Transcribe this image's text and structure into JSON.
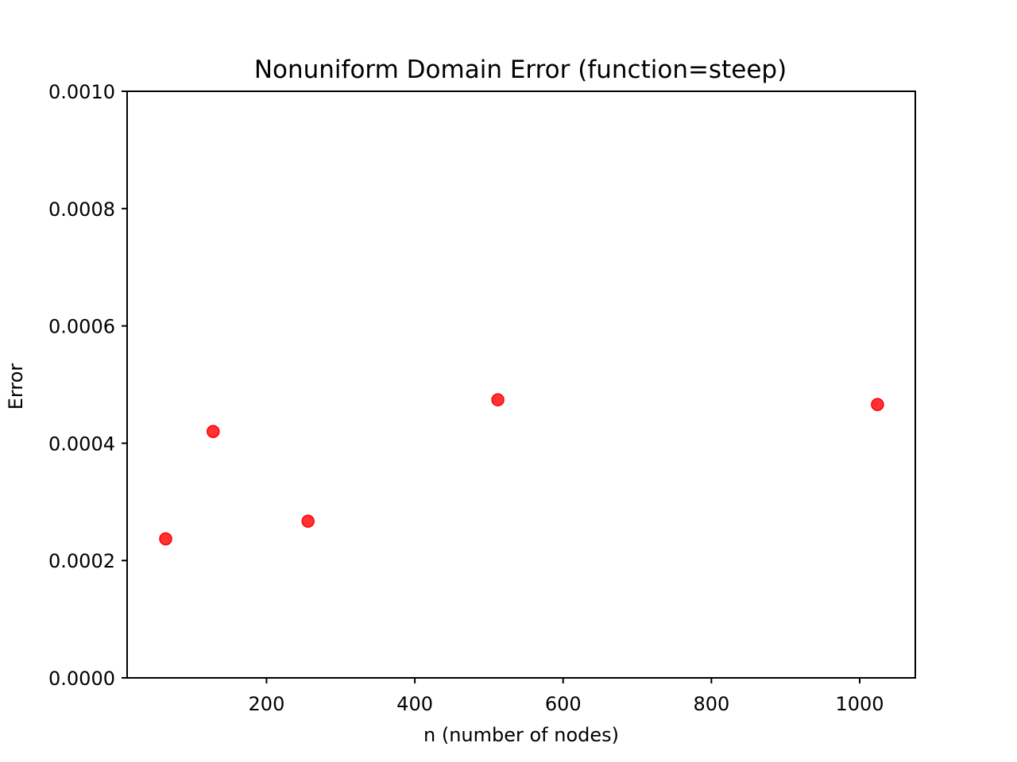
{
  "chart_data": {
    "type": "scatter",
    "title": "Nonuniform Domain Error (function=steep)",
    "xlabel": "n (number of nodes)",
    "ylabel": "Error",
    "xlim": [
      12,
      1075
    ],
    "ylim": [
      0,
      0.001
    ],
    "x_ticks": [
      200,
      400,
      600,
      800,
      1000
    ],
    "x_tick_labels": [
      "200",
      "400",
      "600",
      "800",
      "1000"
    ],
    "y_ticks": [
      0,
      0.0002,
      0.0004,
      0.0006,
      0.0008,
      0.001
    ],
    "y_tick_labels": [
      "0.0000",
      "0.0002",
      "0.0004",
      "0.0006",
      "0.0008",
      "0.0010"
    ],
    "grid": false,
    "legend": "none",
    "series": [
      {
        "color": "#ff0000",
        "points": [
          {
            "x": 64,
            "y": 0.000237
          },
          {
            "x": 128,
            "y": 0.00042
          },
          {
            "x": 256,
            "y": 0.000267
          },
          {
            "x": 512,
            "y": 0.000474
          },
          {
            "x": 1024,
            "y": 0.000466
          }
        ]
      }
    ]
  }
}
